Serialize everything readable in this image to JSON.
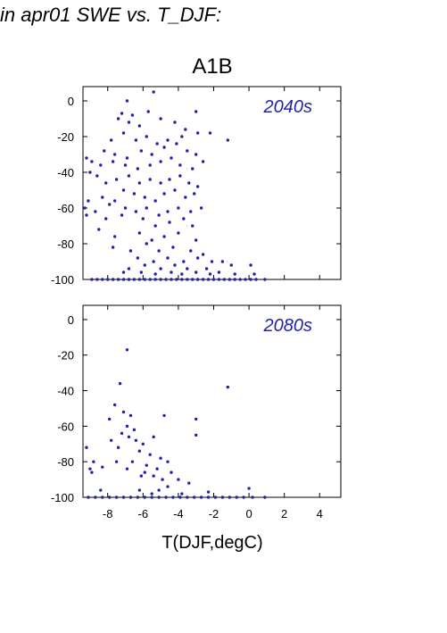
{
  "page_title": "in apr01 SWE vs. T_DJF:",
  "chart_data": {
    "type": "scatter",
    "scenario": "A1B",
    "xlabel": "T(DJF,degC)",
    "xlim": [
      -9.4,
      5.2
    ],
    "ylim": [
      -100,
      8
    ],
    "x_ticks": [
      -8,
      -6,
      -4,
      -2,
      0,
      2,
      4
    ],
    "y_ticks": [
      0,
      -20,
      -40,
      -60,
      -80,
      -100
    ],
    "point_color": "#2222aa",
    "grid": false,
    "panels": [
      {
        "label": "2040s",
        "points": [
          [
            -5.4,
            5
          ],
          [
            -6.9,
            0
          ],
          [
            -7.2,
            -7
          ],
          [
            -6.6,
            -8
          ],
          [
            -5.7,
            -6
          ],
          [
            -3.0,
            -6
          ],
          [
            -1.2,
            -22
          ],
          [
            -7.4,
            -10
          ],
          [
            -6.8,
            -12
          ],
          [
            -6.2,
            -14
          ],
          [
            -5.0,
            -10
          ],
          [
            -4.2,
            -12
          ],
          [
            -3.6,
            -16
          ],
          [
            -2.9,
            -18
          ],
          [
            -2.2,
            -18
          ],
          [
            -3.8,
            -20
          ],
          [
            -4.6,
            -22
          ],
          [
            -5.2,
            -24
          ],
          [
            -5.8,
            -20
          ],
          [
            -6.4,
            -22
          ],
          [
            -7.1,
            -18
          ],
          [
            -7.8,
            -22
          ],
          [
            -8.2,
            -28
          ],
          [
            -7.6,
            -30
          ],
          [
            -6.9,
            -32
          ],
          [
            -6.1,
            -28
          ],
          [
            -5.5,
            -30
          ],
          [
            -4.8,
            -26
          ],
          [
            -4.1,
            -24
          ],
          [
            -3.5,
            -28
          ],
          [
            -3.0,
            -30
          ],
          [
            -2.6,
            -34
          ],
          [
            -3.2,
            -38
          ],
          [
            -3.9,
            -36
          ],
          [
            -4.4,
            -32
          ],
          [
            -5.0,
            -34
          ],
          [
            -5.6,
            -36
          ],
          [
            -6.3,
            -38
          ],
          [
            -7.0,
            -36
          ],
          [
            -7.7,
            -34
          ],
          [
            -8.4,
            -36
          ],
          [
            -8.9,
            -34
          ],
          [
            -9.2,
            -32
          ],
          [
            -9.0,
            -40
          ],
          [
            -8.6,
            -42
          ],
          [
            -8.1,
            -46
          ],
          [
            -7.5,
            -44
          ],
          [
            -6.8,
            -42
          ],
          [
            -6.2,
            -46
          ],
          [
            -5.6,
            -44
          ],
          [
            -5.0,
            -46
          ],
          [
            -4.5,
            -44
          ],
          [
            -3.9,
            -42
          ],
          [
            -3.4,
            -46
          ],
          [
            -2.9,
            -48
          ],
          [
            -3.1,
            -52
          ],
          [
            -3.6,
            -54
          ],
          [
            -4.2,
            -50
          ],
          [
            -4.8,
            -52
          ],
          [
            -5.3,
            -56
          ],
          [
            -5.9,
            -54
          ],
          [
            -6.5,
            -52
          ],
          [
            -7.1,
            -50
          ],
          [
            -7.6,
            -56
          ],
          [
            -8.3,
            -54
          ],
          [
            -9.1,
            -56
          ],
          [
            -9.3,
            -60
          ],
          [
            -8.7,
            -62
          ],
          [
            -7.9,
            -58
          ],
          [
            -7.0,
            -60
          ],
          [
            -6.4,
            -62
          ],
          [
            -5.8,
            -60
          ],
          [
            -5.1,
            -64
          ],
          [
            -4.6,
            -62
          ],
          [
            -4.0,
            -60
          ],
          [
            -3.3,
            -62
          ],
          [
            -2.7,
            -60
          ],
          [
            -9.2,
            -64
          ],
          [
            -8.1,
            -66
          ],
          [
            -7.2,
            -64
          ],
          [
            -6.0,
            -66
          ],
          [
            -5.3,
            -70
          ],
          [
            -4.5,
            -68
          ],
          [
            -3.7,
            -66
          ],
          [
            -3.2,
            -70
          ],
          [
            -8.5,
            -72
          ],
          [
            -7.6,
            -76
          ],
          [
            -6.2,
            -74
          ],
          [
            -5.5,
            -78
          ],
          [
            -4.8,
            -76
          ],
          [
            -4.0,
            -74
          ],
          [
            -3.0,
            -78
          ],
          [
            -7.7,
            -82
          ],
          [
            -6.7,
            -84
          ],
          [
            -5.8,
            -80
          ],
          [
            -5.1,
            -84
          ],
          [
            -4.3,
            -82
          ],
          [
            -3.3,
            -84
          ],
          [
            -2.6,
            -86
          ],
          [
            -6.3,
            -88
          ],
          [
            -5.4,
            -90
          ],
          [
            -4.6,
            -88
          ],
          [
            -3.7,
            -90
          ],
          [
            -2.9,
            -88
          ],
          [
            -2.1,
            -90
          ],
          [
            -1.5,
            -90
          ],
          [
            -6.8,
            -94
          ],
          [
            -5.9,
            -92
          ],
          [
            -5.0,
            -94
          ],
          [
            -4.2,
            -92
          ],
          [
            -3.5,
            -94
          ],
          [
            -2.4,
            -94
          ],
          [
            -1.0,
            -92
          ],
          [
            0.1,
            -92
          ],
          [
            -7.1,
            -96
          ],
          [
            -6.1,
            -96
          ],
          [
            -5.3,
            -97
          ],
          [
            -4.4,
            -96
          ],
          [
            -3.8,
            -97
          ],
          [
            -3.0,
            -96
          ],
          [
            -2.2,
            -97
          ],
          [
            -1.7,
            -96
          ],
          [
            -0.8,
            -97
          ],
          [
            0.3,
            -97
          ],
          [
            -8.9,
            -100
          ],
          [
            -8.6,
            -100
          ],
          [
            -8.3,
            -100
          ],
          [
            -8.0,
            -100
          ],
          [
            -7.7,
            -100
          ],
          [
            -7.4,
            -100
          ],
          [
            -7.1,
            -100
          ],
          [
            -6.8,
            -100
          ],
          [
            -6.5,
            -100
          ],
          [
            -6.2,
            -100
          ],
          [
            -5.9,
            -100
          ],
          [
            -5.6,
            -100
          ],
          [
            -5.3,
            -100
          ],
          [
            -5.0,
            -100
          ],
          [
            -4.7,
            -100
          ],
          [
            -4.4,
            -100
          ],
          [
            -4.1,
            -100
          ],
          [
            -3.8,
            -100
          ],
          [
            -3.5,
            -100
          ],
          [
            -3.2,
            -100
          ],
          [
            -2.9,
            -100
          ],
          [
            -2.6,
            -100
          ],
          [
            -2.3,
            -100
          ],
          [
            -2.0,
            -100
          ],
          [
            -1.7,
            -100
          ],
          [
            -1.4,
            -100
          ],
          [
            -1.1,
            -100
          ],
          [
            -0.8,
            -100
          ],
          [
            -0.5,
            -100
          ],
          [
            -0.2,
            -100
          ],
          [
            0.1,
            -100
          ],
          [
            0.4,
            -100
          ],
          [
            0.9,
            -100
          ]
        ]
      },
      {
        "label": "2080s",
        "points": [
          [
            -6.9,
            -17
          ],
          [
            -7.3,
            -36
          ],
          [
            -1.2,
            -38
          ],
          [
            -7.6,
            -48
          ],
          [
            -7.1,
            -52
          ],
          [
            -6.7,
            -54
          ],
          [
            -4.8,
            -54
          ],
          [
            -7.9,
            -56
          ],
          [
            -3.0,
            -56
          ],
          [
            -6.9,
            -60
          ],
          [
            -6.5,
            -62
          ],
          [
            -7.2,
            -64
          ],
          [
            -6.8,
            -66
          ],
          [
            -6.4,
            -68
          ],
          [
            -7.8,
            -68
          ],
          [
            -6.0,
            -70
          ],
          [
            -5.4,
            -66
          ],
          [
            -3.0,
            -65
          ],
          [
            -9.2,
            -72
          ],
          [
            -7.4,
            -72
          ],
          [
            -6.2,
            -74
          ],
          [
            -5.6,
            -76
          ],
          [
            -5.0,
            -78
          ],
          [
            -8.8,
            -80
          ],
          [
            -7.5,
            -80
          ],
          [
            -6.6,
            -80
          ],
          [
            -5.8,
            -82
          ],
          [
            -5.2,
            -84
          ],
          [
            -4.6,
            -80
          ],
          [
            -8.3,
            -83
          ],
          [
            -9.0,
            -84
          ],
          [
            -8.9,
            -86
          ],
          [
            -6.9,
            -84
          ],
          [
            -5.9,
            -86
          ],
          [
            -5.4,
            -88
          ],
          [
            -4.4,
            -86
          ],
          [
            -6.1,
            -88
          ],
          [
            -4.9,
            -90
          ],
          [
            -4.0,
            -90
          ],
          [
            -3.4,
            -92
          ],
          [
            -4.6,
            -94
          ],
          [
            -8.4,
            -96
          ],
          [
            -6.2,
            -96
          ],
          [
            -5.1,
            -96
          ],
          [
            -2.3,
            -97
          ],
          [
            0.0,
            -95
          ],
          [
            -5.5,
            -98
          ],
          [
            -3.8,
            -98
          ],
          [
            -9.1,
            -100
          ],
          [
            -8.7,
            -100
          ],
          [
            -8.3,
            -100
          ],
          [
            -7.9,
            -100
          ],
          [
            -7.5,
            -100
          ],
          [
            -7.1,
            -100
          ],
          [
            -6.7,
            -100
          ],
          [
            -6.3,
            -100
          ],
          [
            -5.9,
            -100
          ],
          [
            -5.5,
            -100
          ],
          [
            -5.1,
            -100
          ],
          [
            -4.7,
            -100
          ],
          [
            -4.3,
            -100
          ],
          [
            -3.9,
            -100
          ],
          [
            -3.5,
            -100
          ],
          [
            -3.1,
            -100
          ],
          [
            -2.7,
            -100
          ],
          [
            -2.3,
            -100
          ],
          [
            -1.9,
            -100
          ],
          [
            -1.5,
            -100
          ],
          [
            -1.1,
            -100
          ],
          [
            -0.7,
            -100
          ],
          [
            -0.3,
            -100
          ],
          [
            0.2,
            -100
          ],
          [
            0.9,
            -100
          ]
        ]
      }
    ]
  }
}
